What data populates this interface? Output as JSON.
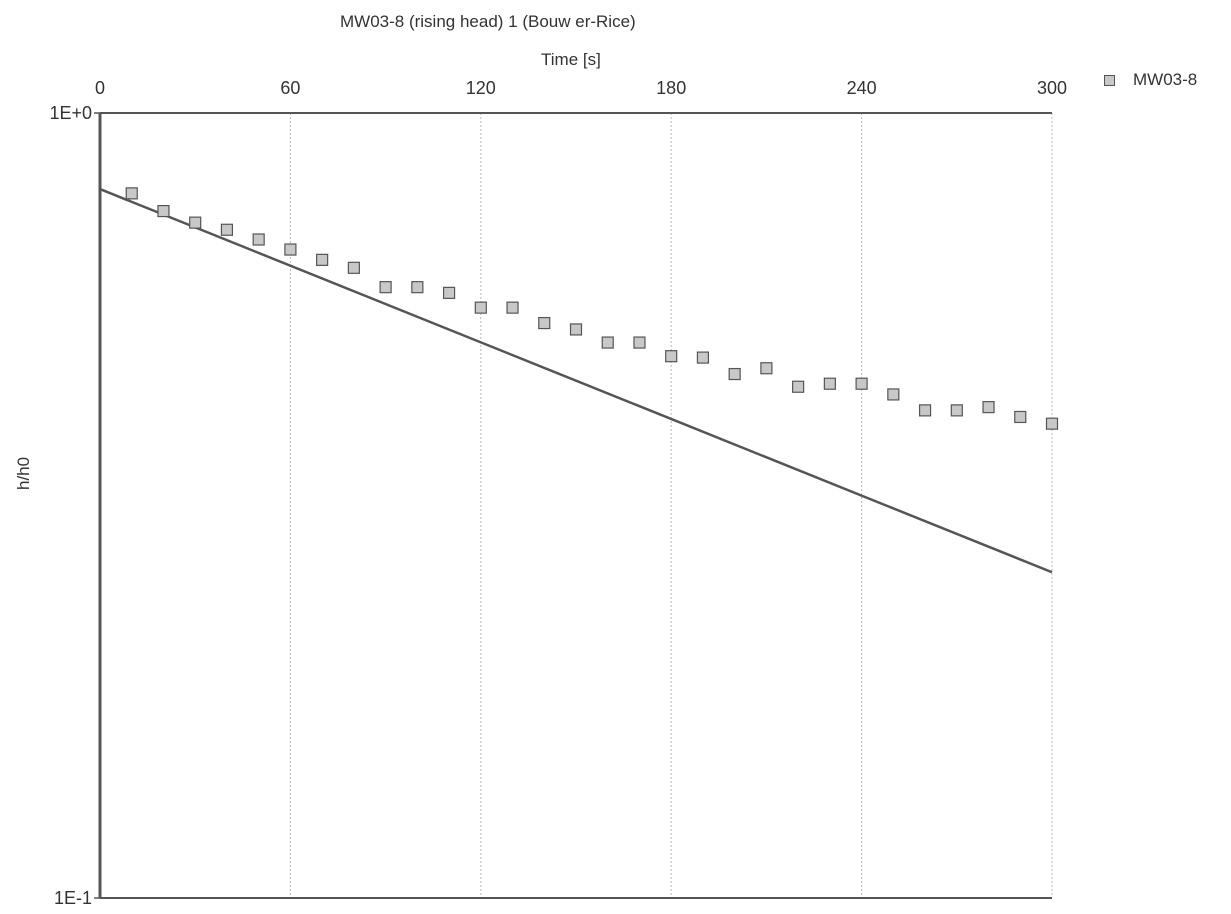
{
  "chart_data": {
    "type": "scatter",
    "title": "MW03-8 (rising head) 1 (Bouw er-Rice)",
    "xlabel": "Time [s]",
    "ylabel": "h/h0",
    "xlim": [
      0,
      300
    ],
    "ylim": [
      0.1,
      1
    ],
    "y_scale": "log",
    "x_axis_position": "top",
    "x_ticks": [
      0,
      60,
      120,
      180,
      240,
      300
    ],
    "x_tick_labels": [
      "0",
      "60",
      "120",
      "180",
      "240",
      "300"
    ],
    "y_tick_values": [
      1,
      0.1
    ],
    "y_tick_labels": [
      "1E+0",
      "1E-1"
    ],
    "grid": "vertical",
    "legend": "top-right",
    "series": [
      {
        "name": "MW03-8",
        "marker": "square",
        "color": "#c8c8c8",
        "x": [
          10,
          20,
          30,
          40,
          50,
          60,
          70,
          80,
          90,
          100,
          110,
          120,
          130,
          140,
          150,
          160,
          170,
          180,
          190,
          200,
          210,
          220,
          230,
          240,
          250,
          260,
          270,
          280,
          290,
          300
        ],
        "y": [
          0.79,
          0.75,
          0.725,
          0.71,
          0.69,
          0.67,
          0.65,
          0.635,
          0.6,
          0.6,
          0.59,
          0.565,
          0.565,
          0.54,
          0.53,
          0.51,
          0.51,
          0.49,
          0.488,
          0.465,
          0.473,
          0.448,
          0.452,
          0.452,
          0.438,
          0.418,
          0.418,
          0.422,
          0.41,
          0.402
        ]
      }
    ],
    "fit_line": {
      "color": "#555555",
      "x": [
        0,
        300
      ],
      "y": [
        0.8,
        0.26
      ]
    }
  }
}
